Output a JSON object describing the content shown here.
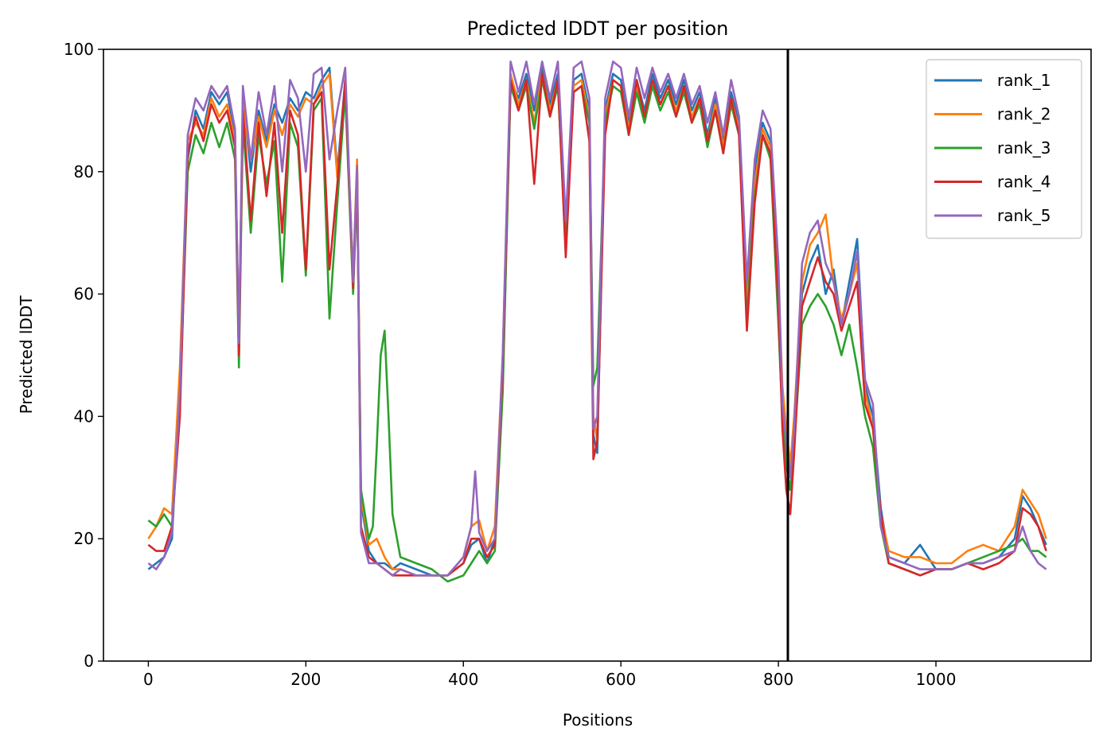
{
  "chart_data": {
    "type": "line",
    "title": "Predicted lDDT per position",
    "xlabel": "Positions",
    "ylabel": "Predicted lDDT",
    "xlim": [
      -57,
      1197
    ],
    "ylim": [
      0,
      100
    ],
    "xticks": [
      0,
      200,
      400,
      600,
      800,
      1000
    ],
    "yticks": [
      0,
      20,
      40,
      60,
      80,
      100
    ],
    "grid": false,
    "legend_position": "upper right",
    "vertical_line": {
      "x": 812,
      "color": "#000000"
    },
    "series": [
      {
        "name": "rank_1",
        "color": "#1f77b4",
        "x": [
          0,
          10,
          20,
          30,
          40,
          50,
          60,
          70,
          80,
          90,
          100,
          110,
          115,
          120,
          130,
          140,
          150,
          160,
          170,
          180,
          190,
          200,
          210,
          220,
          230,
          240,
          250,
          260,
          265,
          270,
          280,
          290,
          300,
          310,
          320,
          340,
          360,
          380,
          400,
          410,
          420,
          430,
          440,
          450,
          460,
          470,
          480,
          490,
          500,
          510,
          520,
          530,
          540,
          550,
          560,
          565,
          570,
          580,
          590,
          600,
          610,
          620,
          630,
          640,
          650,
          660,
          670,
          680,
          690,
          700,
          710,
          720,
          730,
          740,
          750,
          760,
          770,
          780,
          790,
          800,
          805,
          810,
          815,
          820,
          830,
          840,
          850,
          860,
          870,
          880,
          890,
          900,
          910,
          920,
          930,
          940,
          960,
          980,
          1000,
          1020,
          1040,
          1060,
          1080,
          1100,
          1110,
          1120,
          1130,
          1140
        ],
        "values": [
          15,
          16,
          17,
          20,
          45,
          82,
          90,
          87,
          93,
          91,
          93,
          86,
          51,
          92,
          80,
          90,
          85,
          91,
          88,
          92,
          90,
          93,
          92,
          95,
          97,
          80,
          95,
          62,
          80,
          26,
          18,
          16,
          16,
          15,
          16,
          15,
          14,
          14,
          16,
          19,
          20,
          16,
          20,
          45,
          95,
          92,
          96,
          90,
          97,
          91,
          96,
          70,
          95,
          96,
          90,
          37,
          34,
          90,
          96,
          95,
          88,
          95,
          90,
          96,
          92,
          95,
          91,
          95,
          90,
          93,
          86,
          92,
          85,
          93,
          88,
          60,
          80,
          88,
          85,
          60,
          40,
          34,
          30,
          38,
          60,
          65,
          68,
          60,
          64,
          55,
          62,
          69,
          45,
          40,
          25,
          17,
          16,
          19,
          15,
          15,
          16,
          16,
          17,
          20,
          27,
          25,
          22,
          19
        ]
      },
      {
        "name": "rank_2",
        "color": "#ff7f0e",
        "x": [
          0,
          10,
          20,
          30,
          40,
          50,
          60,
          70,
          80,
          90,
          100,
          110,
          115,
          120,
          130,
          140,
          150,
          160,
          170,
          180,
          190,
          200,
          210,
          220,
          230,
          240,
          250,
          260,
          265,
          270,
          280,
          290,
          300,
          310,
          320,
          340,
          360,
          380,
          400,
          410,
          420,
          430,
          440,
          450,
          460,
          470,
          480,
          490,
          500,
          510,
          520,
          530,
          540,
          550,
          560,
          565,
          570,
          580,
          590,
          600,
          610,
          620,
          630,
          640,
          650,
          660,
          670,
          680,
          690,
          700,
          710,
          720,
          730,
          740,
          750,
          760,
          770,
          780,
          790,
          800,
          805,
          810,
          815,
          820,
          830,
          840,
          850,
          860,
          870,
          880,
          890,
          900,
          910,
          920,
          930,
          940,
          960,
          980,
          1000,
          1020,
          1040,
          1060,
          1080,
          1100,
          1110,
          1120,
          1130,
          1140
        ],
        "values": [
          20,
          22,
          25,
          24,
          48,
          85,
          88,
          86,
          92,
          89,
          91,
          85,
          52,
          91,
          82,
          89,
          84,
          90,
          86,
          91,
          89,
          92,
          91,
          94,
          96,
          79,
          94,
          63,
          82,
          27,
          19,
          20,
          17,
          15,
          15,
          14,
          14,
          14,
          17,
          22,
          23,
          18,
          22,
          50,
          96,
          91,
          95,
          88,
          96,
          90,
          95,
          69,
          94,
          95,
          89,
          40,
          36,
          89,
          95,
          94,
          87,
          94,
          89,
          95,
          91,
          94,
          90,
          94,
          89,
          92,
          85,
          91,
          84,
          92,
          87,
          58,
          78,
          87,
          84,
          62,
          45,
          38,
          32,
          40,
          62,
          68,
          70,
          73,
          62,
          56,
          60,
          65,
          44,
          38,
          24,
          18,
          17,
          17,
          16,
          16,
          18,
          19,
          18,
          22,
          28,
          26,
          24,
          20
        ]
      },
      {
        "name": "rank_3",
        "color": "#2ca02c",
        "x": [
          0,
          10,
          20,
          30,
          40,
          50,
          60,
          70,
          80,
          90,
          100,
          110,
          115,
          120,
          130,
          140,
          150,
          160,
          170,
          180,
          190,
          200,
          210,
          220,
          230,
          240,
          250,
          260,
          265,
          270,
          280,
          285,
          290,
          295,
          300,
          305,
          310,
          320,
          340,
          360,
          380,
          400,
          410,
          420,
          430,
          440,
          450,
          460,
          470,
          480,
          490,
          500,
          510,
          520,
          530,
          540,
          550,
          560,
          565,
          570,
          580,
          590,
          600,
          610,
          620,
          630,
          640,
          650,
          660,
          670,
          680,
          690,
          700,
          710,
          720,
          730,
          740,
          750,
          760,
          770,
          780,
          790,
          800,
          805,
          810,
          815,
          820,
          830,
          840,
          850,
          860,
          870,
          880,
          890,
          900,
          910,
          920,
          930,
          940,
          960,
          980,
          1000,
          1020,
          1040,
          1060,
          1080,
          1100,
          1110,
          1120,
          1130,
          1140
        ],
        "values": [
          23,
          22,
          24,
          22,
          42,
          80,
          86,
          83,
          88,
          84,
          88,
          82,
          48,
          88,
          70,
          86,
          78,
          85,
          62,
          88,
          84,
          63,
          90,
          92,
          56,
          75,
          93,
          60,
          78,
          28,
          20,
          22,
          35,
          50,
          54,
          40,
          24,
          17,
          16,
          15,
          13,
          14,
          16,
          18,
          16,
          18,
          44,
          94,
          90,
          94,
          87,
          95,
          89,
          94,
          68,
          93,
          94,
          88,
          45,
          48,
          88,
          94,
          93,
          86,
          93,
          88,
          94,
          90,
          93,
          89,
          93,
          88,
          91,
          84,
          90,
          83,
          91,
          86,
          56,
          76,
          86,
          82,
          55,
          40,
          32,
          28,
          35,
          55,
          58,
          60,
          58,
          55,
          50,
          55,
          48,
          40,
          35,
          22,
          16,
          15,
          14,
          15,
          15,
          16,
          17,
          18,
          19,
          20,
          18,
          18,
          17
        ]
      },
      {
        "name": "rank_4",
        "color": "#d62728",
        "x": [
          0,
          10,
          20,
          30,
          40,
          50,
          60,
          70,
          80,
          90,
          100,
          110,
          115,
          120,
          130,
          140,
          150,
          160,
          170,
          180,
          190,
          200,
          210,
          220,
          230,
          240,
          250,
          260,
          265,
          270,
          280,
          290,
          300,
          310,
          320,
          340,
          360,
          380,
          400,
          410,
          420,
          430,
          440,
          450,
          460,
          470,
          480,
          490,
          500,
          510,
          520,
          530,
          540,
          550,
          560,
          565,
          570,
          580,
          590,
          600,
          610,
          620,
          630,
          640,
          650,
          660,
          670,
          680,
          690,
          700,
          710,
          720,
          730,
          740,
          750,
          760,
          770,
          780,
          790,
          800,
          805,
          810,
          815,
          820,
          830,
          840,
          850,
          860,
          870,
          880,
          890,
          900,
          910,
          920,
          930,
          940,
          960,
          980,
          1000,
          1020,
          1040,
          1060,
          1080,
          1100,
          1110,
          1120,
          1130,
          1140
        ],
        "values": [
          19,
          18,
          18,
          22,
          40,
          83,
          89,
          85,
          91,
          88,
          90,
          84,
          50,
          90,
          72,
          88,
          76,
          88,
          70,
          90,
          86,
          64,
          91,
          93,
          64,
          78,
          95,
          61,
          80,
          22,
          17,
          16,
          15,
          14,
          14,
          14,
          14,
          14,
          16,
          20,
          20,
          17,
          19,
          48,
          95,
          90,
          95,
          78,
          96,
          89,
          95,
          66,
          93,
          94,
          85,
          33,
          36,
          86,
          95,
          94,
          86,
          95,
          89,
          95,
          91,
          94,
          89,
          94,
          88,
          92,
          85,
          90,
          83,
          92,
          86,
          54,
          75,
          86,
          83,
          58,
          38,
          28,
          24,
          34,
          58,
          62,
          66,
          62,
          60,
          54,
          58,
          62,
          42,
          38,
          24,
          16,
          15,
          14,
          15,
          15,
          16,
          15,
          16,
          18,
          25,
          24,
          22,
          18
        ]
      },
      {
        "name": "rank_5",
        "color": "#9467bd",
        "x": [
          0,
          10,
          20,
          30,
          40,
          50,
          60,
          70,
          80,
          90,
          100,
          110,
          115,
          120,
          130,
          140,
          150,
          160,
          170,
          180,
          190,
          200,
          210,
          220,
          230,
          240,
          250,
          260,
          265,
          270,
          280,
          290,
          300,
          310,
          320,
          340,
          360,
          380,
          400,
          410,
          415,
          420,
          430,
          440,
          450,
          460,
          470,
          480,
          490,
          500,
          510,
          520,
          530,
          540,
          550,
          560,
          565,
          570,
          580,
          590,
          600,
          610,
          620,
          630,
          640,
          650,
          660,
          670,
          680,
          690,
          700,
          710,
          720,
          730,
          740,
          750,
          760,
          770,
          780,
          790,
          800,
          805,
          810,
          815,
          820,
          830,
          840,
          850,
          860,
          870,
          880,
          890,
          900,
          910,
          920,
          930,
          940,
          960,
          980,
          1000,
          1020,
          1040,
          1060,
          1080,
          1100,
          1110,
          1120,
          1130,
          1140
        ],
        "values": [
          16,
          15,
          17,
          21,
          44,
          86,
          92,
          90,
          94,
          92,
          94,
          87,
          52,
          94,
          82,
          93,
          86,
          94,
          80,
          95,
          92,
          80,
          96,
          97,
          82,
          90,
          97,
          62,
          81,
          21,
          16,
          16,
          15,
          14,
          15,
          14,
          14,
          14,
          17,
          22,
          31,
          21,
          18,
          20,
          50,
          98,
          93,
          98,
          91,
          98,
          92,
          98,
          72,
          97,
          98,
          92,
          38,
          40,
          92,
          98,
          97,
          89,
          97,
          92,
          97,
          93,
          96,
          92,
          96,
          91,
          94,
          88,
          93,
          86,
          95,
          89,
          62,
          82,
          90,
          87,
          65,
          42,
          36,
          30,
          38,
          65,
          70,
          72,
          65,
          62,
          55,
          60,
          67,
          46,
          42,
          22,
          17,
          16,
          15,
          15,
          15,
          16,
          16,
          17,
          18,
          22,
          18,
          16,
          15
        ]
      }
    ]
  }
}
